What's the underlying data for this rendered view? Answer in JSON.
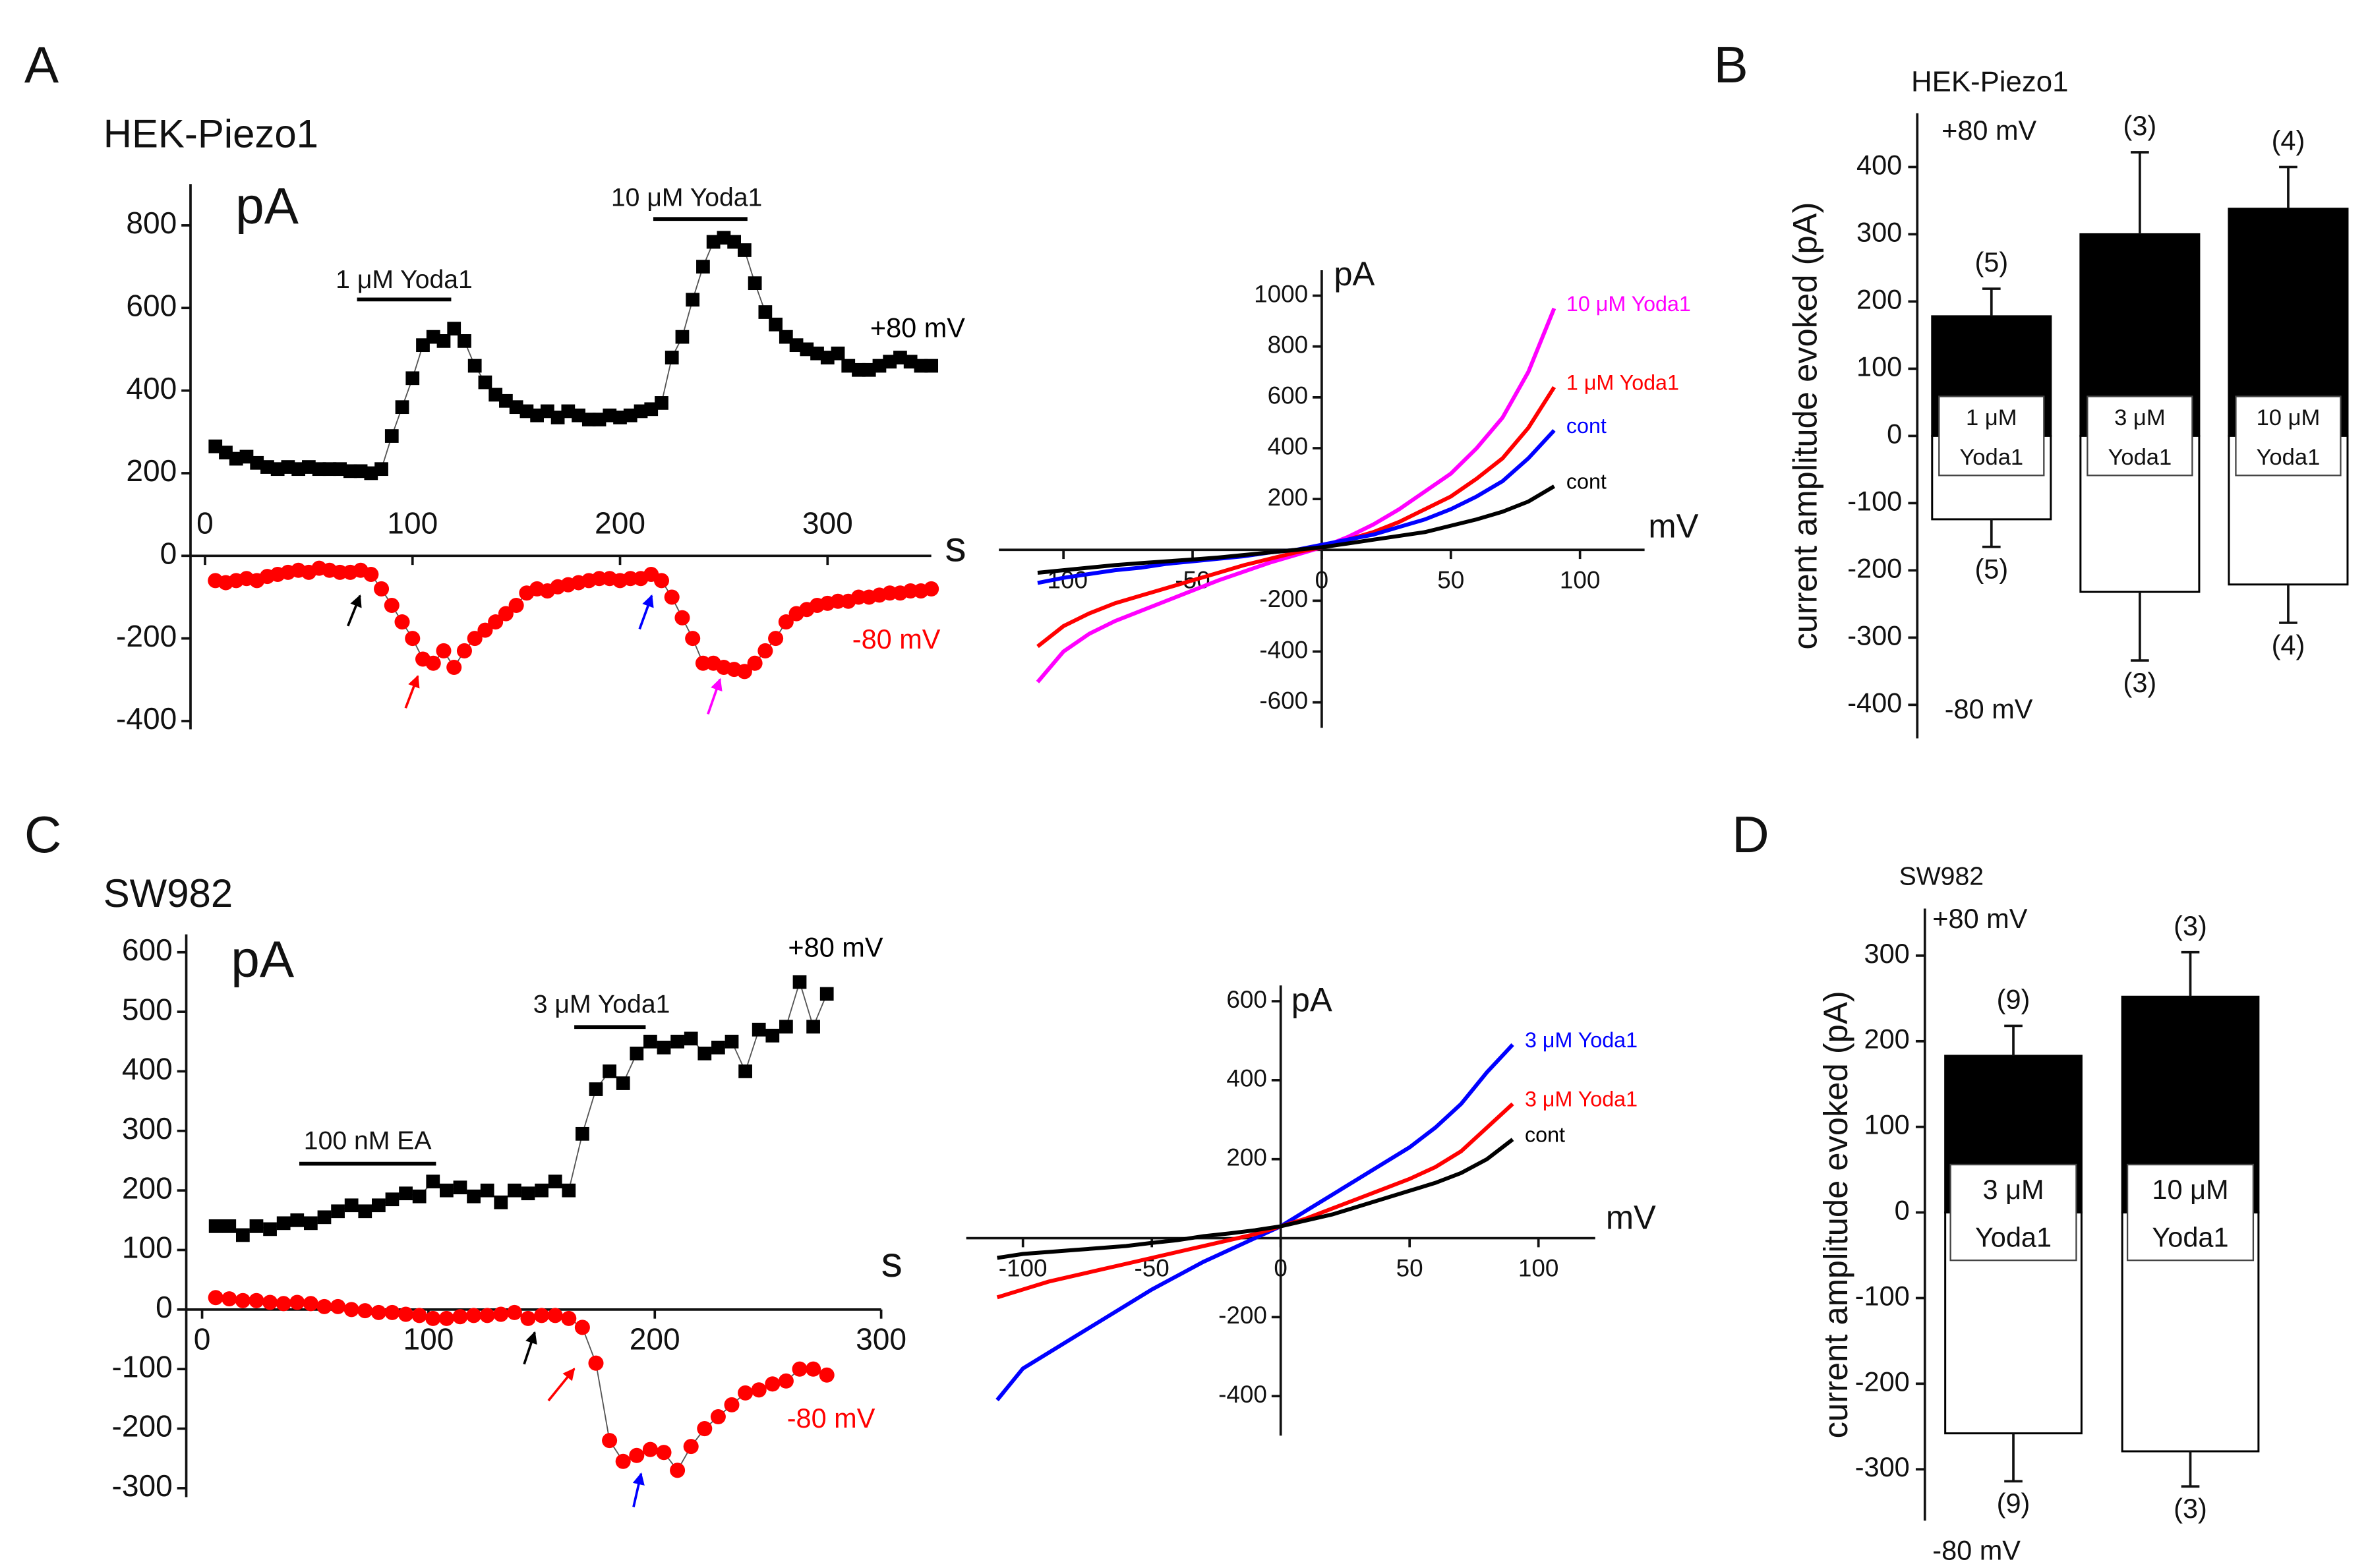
{
  "chart_data": [
    {
      "type": "scatter",
      "panel": "A",
      "title": "HEK-Piezo1",
      "ylabel": "pA",
      "xlabel": "s",
      "annotations": [
        "1 μM Yoda1",
        "10 μM Yoda1"
      ],
      "xlim": [
        -7,
        350
      ],
      "ylim": [
        -420,
        900
      ],
      "xticks": [
        0,
        100,
        200,
        300
      ],
      "yticks": [
        -400,
        -200,
        0,
        200,
        400,
        600,
        800
      ],
      "x": [
        5,
        10,
        15,
        20,
        25,
        30,
        35,
        40,
        45,
        50,
        55,
        60,
        65,
        70,
        75,
        80,
        85,
        90,
        95,
        100,
        105,
        110,
        115,
        120,
        125,
        130,
        135,
        140,
        145,
        150,
        155,
        160,
        165,
        170,
        175,
        180,
        185,
        190,
        195,
        200,
        205,
        210,
        215,
        220,
        225,
        230,
        235,
        240,
        245,
        250,
        255,
        260,
        265,
        270,
        275,
        280,
        285,
        290,
        295,
        300,
        305,
        310,
        315,
        320,
        325,
        330,
        335,
        340,
        345,
        350
      ],
      "series": [
        {
          "name": "+80 mV",
          "color": "#000000",
          "marker": "square",
          "values": [
            265,
            250,
            235,
            240,
            225,
            215,
            210,
            215,
            210,
            215,
            210,
            210,
            210,
            205,
            205,
            200,
            210,
            290,
            360,
            430,
            510,
            530,
            520,
            550,
            520,
            460,
            420,
            390,
            375,
            360,
            350,
            340,
            350,
            335,
            350,
            340,
            330,
            330,
            340,
            335,
            340,
            350,
            355,
            370,
            480,
            530,
            620,
            700,
            760,
            770,
            760,
            740,
            660,
            590,
            560,
            530,
            510,
            500,
            490,
            480,
            490,
            460,
            450,
            450,
            460,
            470,
            480,
            470,
            460,
            460
          ]
        },
        {
          "name": "-80 mV",
          "color": "#ff0000",
          "marker": "circle",
          "values": [
            -60,
            -65,
            -60,
            -55,
            -60,
            -50,
            -45,
            -40,
            -35,
            -40,
            -30,
            -35,
            -40,
            -40,
            -35,
            -45,
            -80,
            -120,
            -160,
            -200,
            -250,
            -260,
            -230,
            -270,
            -230,
            -200,
            -180,
            -160,
            -140,
            -120,
            -90,
            -80,
            -85,
            -75,
            -70,
            -65,
            -60,
            -55,
            -55,
            -60,
            -55,
            -55,
            -45,
            -60,
            -100,
            -150,
            -200,
            -260,
            -260,
            -270,
            -275,
            -280,
            -260,
            -230,
            -200,
            -160,
            -140,
            -130,
            -120,
            -115,
            -110,
            -110,
            -100,
            -100,
            -95,
            -90,
            -90,
            -85,
            -85,
            -80
          ]
        }
      ]
    },
    {
      "type": "line",
      "ylabel": "pA",
      "xlabel": "mV",
      "xlim": [
        -125,
        125
      ],
      "ylim": [
        -700,
        1100
      ],
      "xticks": [
        -100,
        -50,
        0,
        50,
        100
      ],
      "yticks": [
        -600,
        -400,
        -200,
        200,
        400,
        600,
        800,
        1000
      ],
      "x": [
        -110,
        -100,
        -90,
        -80,
        -70,
        -60,
        -50,
        -40,
        -30,
        -20,
        -10,
        0,
        10,
        20,
        30,
        40,
        50,
        60,
        70,
        80,
        90
      ],
      "series": [
        {
          "name": "10 μM Yoda1",
          "color": "#ff00ff",
          "values": [
            -520,
            -400,
            -330,
            -280,
            -240,
            -200,
            -160,
            -120,
            -85,
            -50,
            -20,
            10,
            50,
            100,
            160,
            230,
            300,
            400,
            520,
            700,
            950
          ]
        },
        {
          "name": "1 μM Yoda1",
          "color": "#ff0000",
          "values": [
            -380,
            -300,
            -250,
            -210,
            -180,
            -150,
            -120,
            -90,
            -60,
            -35,
            -10,
            10,
            40,
            70,
            110,
            160,
            210,
            280,
            360,
            480,
            640
          ]
        },
        {
          "name": "cont",
          "color": "#0000ff",
          "values": [
            -130,
            -110,
            -95,
            -80,
            -70,
            -55,
            -45,
            -35,
            -25,
            -10,
            0,
            20,
            40,
            60,
            90,
            120,
            160,
            210,
            270,
            360,
            470
          ]
        },
        {
          "name": "cont",
          "color": "#000000",
          "values": [
            -90,
            -80,
            -70,
            -60,
            -52,
            -45,
            -38,
            -30,
            -20,
            -10,
            0,
            10,
            25,
            40,
            55,
            70,
            95,
            120,
            150,
            190,
            250
          ]
        }
      ]
    },
    {
      "type": "bar",
      "panel": "B",
      "title": "HEK-Piezo1",
      "ylabel": "current amplitude evoked (pA)",
      "ylim": [
        -450,
        480
      ],
      "yticks": [
        -400,
        -300,
        -200,
        -100,
        0,
        100,
        200,
        300,
        400
      ],
      "categories": [
        [
          "1 μM",
          "Yoda1"
        ],
        [
          "3 μM",
          "Yoda1"
        ],
        [
          "10 μM",
          "Yoda1"
        ]
      ],
      "series": [
        {
          "name": "+80 mV",
          "color": "#000000",
          "values": [
            178,
            300,
            338
          ],
          "errors": [
            41,
            122,
            62
          ],
          "n_labels": [
            "(5)",
            "(3)",
            "(4)"
          ]
        },
        {
          "name": "-80 mV",
          "color": "#ffffff",
          "values": [
            -124,
            -232,
            -221
          ],
          "errors": [
            41,
            102,
            57
          ],
          "n_labels": [
            "(5)",
            "(3)",
            "(4)"
          ]
        }
      ]
    },
    {
      "type": "scatter",
      "panel": "C",
      "title": "SW982",
      "ylabel": "pA",
      "xlabel": "s",
      "annotations": [
        "100 nM EA",
        "3 μM Yoda1"
      ],
      "xlim": [
        -7,
        300
      ],
      "ylim": [
        -315,
        630
      ],
      "xticks": [
        0,
        100,
        200,
        300
      ],
      "yticks": [
        -300,
        -200,
        -100,
        0,
        100,
        200,
        300,
        400,
        500,
        600
      ],
      "x": [
        6,
        12,
        18,
        24,
        30,
        36,
        42,
        48,
        54,
        60,
        66,
        72,
        78,
        84,
        90,
        96,
        102,
        108,
        114,
        120,
        126,
        132,
        138,
        144,
        150,
        156,
        162,
        168,
        174,
        180,
        186,
        192,
        198,
        204,
        210,
        216,
        222,
        228,
        234,
        240,
        246,
        252,
        258,
        264,
        270,
        276
      ],
      "series": [
        {
          "name": "+80 mV",
          "color": "#000000",
          "marker": "square",
          "values": [
            140,
            140,
            125,
            140,
            135,
            145,
            150,
            145,
            155,
            165,
            175,
            165,
            175,
            185,
            195,
            190,
            215,
            200,
            205,
            190,
            200,
            180,
            200,
            195,
            200,
            215,
            200,
            295,
            370,
            400,
            380,
            430,
            450,
            440,
            450,
            455,
            430,
            440,
            450,
            400,
            470,
            460,
            475,
            550,
            475,
            530
          ]
        },
        {
          "name": "-80 mV",
          "color": "#ff0000",
          "marker": "circle",
          "values": [
            20,
            18,
            15,
            15,
            12,
            10,
            12,
            10,
            5,
            5,
            0,
            -2,
            -5,
            -5,
            -8,
            -10,
            -15,
            -15,
            -12,
            -10,
            -10,
            -8,
            -5,
            -15,
            -10,
            -10,
            -15,
            -30,
            -90,
            -220,
            -255,
            -245,
            -235,
            -240,
            -270,
            -230,
            -200,
            -180,
            -160,
            -140,
            -135,
            -125,
            -120,
            -100,
            -100,
            -110
          ]
        }
      ]
    },
    {
      "type": "line",
      "ylabel": "pA",
      "xlabel": "mV",
      "xlim": [
        -122,
        122
      ],
      "ylim": [
        -500,
        640
      ],
      "xticks": [
        -100,
        -50,
        0,
        50,
        100
      ],
      "yticks": [
        -400,
        -200,
        200,
        400,
        600
      ],
      "x": [
        -110,
        -100,
        -90,
        -80,
        -70,
        -60,
        -50,
        -40,
        -30,
        -20,
        -10,
        0,
        10,
        20,
        30,
        40,
        50,
        60,
        70,
        80,
        90
      ],
      "series": [
        {
          "name": "3 μM Yoda1",
          "color": "#0000ff",
          "values": [
            -410,
            -330,
            -290,
            -250,
            -210,
            -170,
            -130,
            -95,
            -60,
            -30,
            0,
            30,
            70,
            110,
            150,
            190,
            230,
            280,
            340,
            420,
            490
          ]
        },
        {
          "name": "3 μM Yoda1",
          "color": "#ff0000",
          "values": [
            -150,
            -130,
            -110,
            -95,
            -80,
            -65,
            -50,
            -35,
            -20,
            -5,
            10,
            30,
            50,
            75,
            100,
            125,
            150,
            180,
            220,
            280,
            340
          ]
        },
        {
          "name": "cont",
          "color": "#000000",
          "values": [
            -50,
            -40,
            -35,
            -30,
            -25,
            -20,
            -12,
            -5,
            5,
            12,
            20,
            30,
            45,
            60,
            80,
            100,
            120,
            140,
            165,
            200,
            250
          ]
        }
      ]
    },
    {
      "type": "bar",
      "panel": "D",
      "title": "SW982",
      "ylabel": "current amplitude evoked (pA)",
      "ylim": [
        -360,
        355
      ],
      "yticks": [
        -300,
        -200,
        -100,
        0,
        100,
        200,
        300
      ],
      "categories": [
        [
          "3 μM",
          "Yoda1"
        ],
        [
          "10 μM",
          "Yoda1"
        ]
      ],
      "series": [
        {
          "name": "+80 mV",
          "color": "#000000",
          "values": [
            183,
            252
          ],
          "errors": [
            35,
            52
          ],
          "n_labels": [
            "(9)",
            "(3)"
          ]
        },
        {
          "name": "-80 mV",
          "color": "#ffffff",
          "values": [
            -258,
            -279
          ],
          "errors": [
            56,
            41
          ],
          "n_labels": [
            "(9)",
            "(3)"
          ]
        }
      ]
    }
  ]
}
